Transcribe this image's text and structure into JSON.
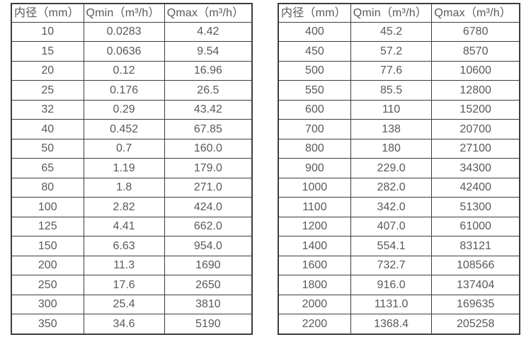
{
  "colors": {
    "background": "#ffffff",
    "text": "#595959",
    "border": "#3d3d3d"
  },
  "tables": [
    {
      "name": "flow-rates-small-diameters",
      "headers": [
        "内径（mm）",
        "Qmin（m³/h）",
        "Qmax（m³/h）"
      ],
      "rows": [
        [
          "10",
          "0.0283",
          "4.42"
        ],
        [
          "15",
          "0.0636",
          "9.54"
        ],
        [
          "20",
          "0.12",
          "16.96"
        ],
        [
          "25",
          "0.176",
          "26.5"
        ],
        [
          "32",
          "0.29",
          "43.42"
        ],
        [
          "40",
          "0.452",
          "67.85"
        ],
        [
          "50",
          "0.7",
          "160.0"
        ],
        [
          "65",
          "1.19",
          "179.0"
        ],
        [
          "80",
          "1.8",
          "271.0"
        ],
        [
          "100",
          "2.82",
          "424.0"
        ],
        [
          "125",
          "4.41",
          "662.0"
        ],
        [
          "150",
          "6.63",
          "954.0"
        ],
        [
          "200",
          "11.3",
          "1690"
        ],
        [
          "250",
          "17.6",
          "2650"
        ],
        [
          "300",
          "25.4",
          "3810"
        ],
        [
          "350",
          "34.6",
          "5190"
        ]
      ]
    },
    {
      "name": "flow-rates-large-diameters",
      "headers": [
        "内径（mm）",
        "Qmin（m³/h）",
        "Qmax（m³/h）"
      ],
      "rows": [
        [
          "400",
          "45.2",
          "6780"
        ],
        [
          "450",
          "57.2",
          "8570"
        ],
        [
          "500",
          "77.6",
          "10600"
        ],
        [
          "550",
          "85.5",
          "12800"
        ],
        [
          "600",
          "110",
          "15200"
        ],
        [
          "700",
          "138",
          "20700"
        ],
        [
          "800",
          "180",
          "27100"
        ],
        [
          "900",
          "229.0",
          "34300"
        ],
        [
          "1000",
          "282.0",
          "42400"
        ],
        [
          "1100",
          "342.0",
          "51300"
        ],
        [
          "1200",
          "407.0",
          "61000"
        ],
        [
          "1400",
          "554.1",
          "83121"
        ],
        [
          "1600",
          "732.7",
          "108566"
        ],
        [
          "1800",
          "916.0",
          "137404"
        ],
        [
          "2000",
          "1131.0",
          "169635"
        ],
        [
          "2200",
          "1368.4",
          "205258"
        ]
      ]
    }
  ]
}
